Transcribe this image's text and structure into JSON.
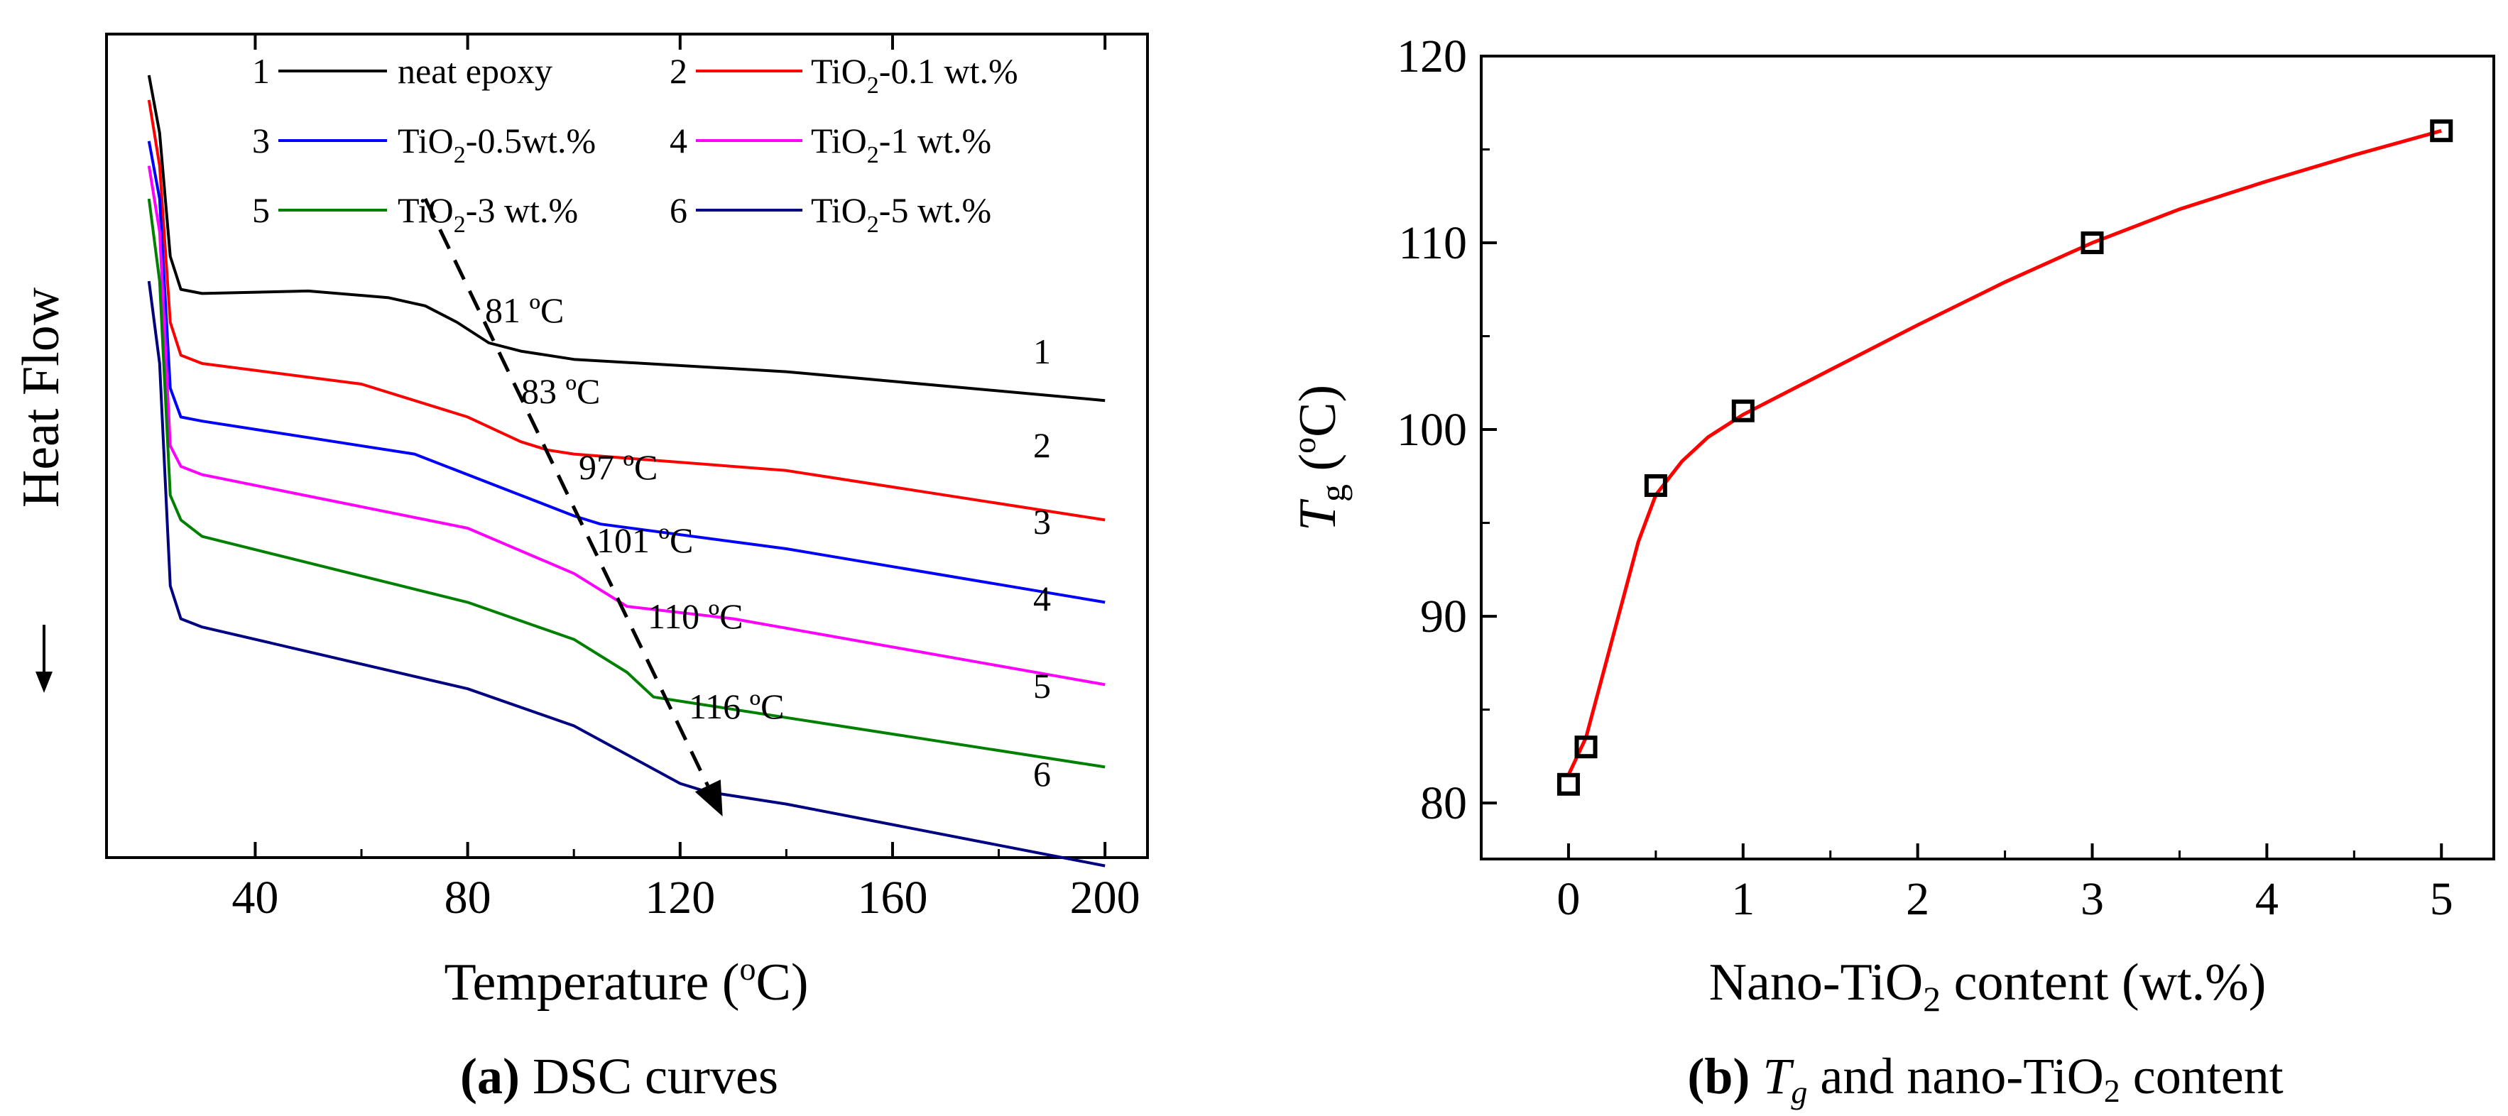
{
  "chart_data": [
    {
      "type": "line",
      "panel": "a",
      "caption": {
        "label": "(a)",
        "text": " DSC curves"
      },
      "xlabel": {
        "main": "Temperature (",
        "sup": "o",
        "tail": "C)"
      },
      "ylabel": "Heat Flow",
      "xlim": [
        12,
        208
      ],
      "ylim": [
        0,
        100
      ],
      "xticks": [
        "40",
        "80",
        "120",
        "160",
        "200"
      ],
      "xtick_values": [
        40,
        80,
        120,
        160,
        200
      ],
      "yaxis_note": "arbitrary units, heat flow decreases downward (arrow)",
      "series": [
        {
          "id": "1",
          "label": "neat epoxy",
          "color": "#000000",
          "tg": 81,
          "tg_label": "81 ºC",
          "points": [
            [
              20,
              95
            ],
            [
              22,
              88
            ],
            [
              24,
              73
            ],
            [
              26,
              69
            ],
            [
              30,
              68.5
            ],
            [
              50,
              68.8
            ],
            [
              65,
              68
            ],
            [
              72,
              67
            ],
            [
              78,
              65
            ],
            [
              84,
              62.5
            ],
            [
              90,
              61.5
            ],
            [
              100,
              60.5
            ],
            [
              140,
              59
            ],
            [
              200,
              55.5
            ]
          ]
        },
        {
          "id": "2",
          "label": "TiO2-0.1 wt.%",
          "color": "#ff0000",
          "tg": 83,
          "tg_label": "83 ºC",
          "points": [
            [
              20,
              92
            ],
            [
              22,
              84
            ],
            [
              24,
              65
            ],
            [
              26,
              61
            ],
            [
              30,
              60
            ],
            [
              60,
              57.5
            ],
            [
              80,
              53.5
            ],
            [
              90,
              50.5
            ],
            [
              95,
              49.5
            ],
            [
              100,
              49
            ],
            [
              140,
              47
            ],
            [
              200,
              41
            ]
          ]
        },
        {
          "id": "3",
          "label": "TiO2-0.5wt.%",
          "color": "#0000ff",
          "tg": 97,
          "tg_label": "97 ºC",
          "points": [
            [
              20,
              87
            ],
            [
              22,
              80
            ],
            [
              24,
              57
            ],
            [
              26,
              53.5
            ],
            [
              30,
              53
            ],
            [
              70,
              49
            ],
            [
              90,
              44
            ],
            [
              100,
              41.5
            ],
            [
              105,
              40.5
            ],
            [
              140,
              37.5
            ],
            [
              200,
              31
            ]
          ]
        },
        {
          "id": "4",
          "label": "TiO2-1 wt.%",
          "color": "#ff00ff",
          "tg": 101,
          "tg_label": "101 ºC",
          "points": [
            [
              20,
              84
            ],
            [
              22,
              76
            ],
            [
              24,
              50
            ],
            [
              26,
              47.5
            ],
            [
              30,
              46.5
            ],
            [
              80,
              40
            ],
            [
              100,
              34.5
            ],
            [
              110,
              30.5
            ],
            [
              130,
              29
            ],
            [
              200,
              21
            ]
          ]
        },
        {
          "id": "5",
          "label": "TiO2-3 wt.%",
          "color": "#008000",
          "tg": 110,
          "tg_label": "110 ºC",
          "points": [
            [
              20,
              80
            ],
            [
              22,
              70
            ],
            [
              24,
              44
            ],
            [
              26,
              41
            ],
            [
              30,
              39
            ],
            [
              80,
              31
            ],
            [
              100,
              26.5
            ],
            [
              110,
              22.5
            ],
            [
              115,
              19.5
            ],
            [
              120,
              19
            ],
            [
              200,
              11
            ]
          ]
        },
        {
          "id": "6",
          "label": "TiO2-5 wt.%",
          "color": "#000080",
          "tg": 116,
          "tg_label": "116 ºC",
          "points": [
            [
              20,
              70
            ],
            [
              22,
              60
            ],
            [
              24,
              33
            ],
            [
              26,
              29
            ],
            [
              30,
              28
            ],
            [
              80,
              20.5
            ],
            [
              100,
              16
            ],
            [
              110,
              12.5
            ],
            [
              120,
              9
            ],
            [
              125,
              8
            ],
            [
              140,
              6.5
            ],
            [
              200,
              -1
            ]
          ]
        }
      ],
      "legend": [
        {
          "num": "1",
          "main": "neat epoxy",
          "sub": "",
          "tail": ""
        },
        {
          "num": "2",
          "main": "TiO",
          "sub": "2",
          "tail": "-0.1 wt.%"
        },
        {
          "num": "3",
          "main": "TiO",
          "sub": "2",
          "tail": "-0.5wt.%"
        },
        {
          "num": "4",
          "main": "TiO",
          "sub": "2",
          "tail": "-1 wt.%"
        },
        {
          "num": "5",
          "main": "TiO",
          "sub": "2",
          "tail": "-3 wt.%"
        },
        {
          "num": "6",
          "main": "TiO",
          "sub": "2",
          "tail": "-5 wt.%"
        }
      ],
      "trend_arrow": {
        "from": [
          72,
          80
        ],
        "to": [
          128,
          5
        ],
        "style": "dashed"
      }
    },
    {
      "type": "scatter",
      "panel": "b",
      "caption": {
        "label": "(b)",
        "t": "T",
        "tsub": "g",
        "tail": " and nano-TiO",
        "tsub2": "2",
        "tail2": " content"
      },
      "xlabel": {
        "main": "Nano-TiO",
        "sub": "2",
        "tail": " content (wt.%)"
      },
      "ylabel": {
        "t": "T",
        "sub": "g",
        "tail": " (",
        "sup": "o",
        "tail2": "C)"
      },
      "xlim": [
        -0.5,
        5.3
      ],
      "ylim": [
        77,
        120
      ],
      "xticks": [
        "0",
        "1",
        "2",
        "3",
        "4",
        "5"
      ],
      "xtick_values": [
        0,
        1,
        2,
        3,
        4,
        5
      ],
      "yticks": [
        "80",
        "90",
        "100",
        "110",
        "120"
      ],
      "ytick_values": [
        80,
        90,
        100,
        110,
        120
      ],
      "series": [
        {
          "name": "Tg",
          "marker": "open-square",
          "color": "#000000",
          "x": [
            0,
            0.1,
            0.5,
            1,
            3,
            5
          ],
          "y": [
            81,
            83,
            97,
            101,
            110,
            116
          ]
        }
      ],
      "fit": {
        "color": "#ff0000",
        "points": [
          [
            0,
            81.5
          ],
          [
            0.05,
            82.5
          ],
          [
            0.1,
            83.5
          ],
          [
            0.2,
            87
          ],
          [
            0.3,
            90.5
          ],
          [
            0.4,
            94
          ],
          [
            0.5,
            96.5
          ],
          [
            0.65,
            98.3
          ],
          [
            0.8,
            99.6
          ],
          [
            1,
            100.8
          ],
          [
            1.5,
            103.2
          ],
          [
            2,
            105.6
          ],
          [
            2.5,
            107.9
          ],
          [
            3,
            110
          ],
          [
            3.5,
            111.8
          ],
          [
            4,
            113.3
          ],
          [
            4.5,
            114.7
          ],
          [
            5,
            116
          ]
        ]
      }
    }
  ]
}
